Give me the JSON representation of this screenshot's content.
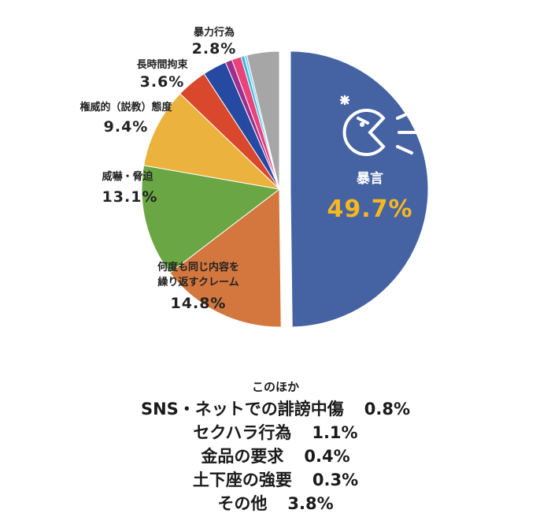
{
  "chart_data": {
    "type": "pie",
    "slices": [
      {
        "label": "暴言",
        "value": 49.7,
        "color": "#4562a3"
      },
      {
        "label": "何度も同じ内容を繰り返すクレーム",
        "label_lines": [
          "何度も同じ内容を",
          "繰り返すクレーム"
        ],
        "value": 14.8,
        "color": "#d4773e"
      },
      {
        "label": "威嚇・脅迫",
        "label_lines": [
          "威嚇・脅迫"
        ],
        "value": 13.1,
        "color": "#6aa744"
      },
      {
        "label": "権威的（説教）態度",
        "label_lines": [
          "権威的（説教）態度"
        ],
        "value": 9.4,
        "color": "#ebb33d"
      },
      {
        "label": "長時間拘束",
        "label_lines": [
          "長時間拘束"
        ],
        "value": 3.6,
        "color": "#d9472c"
      },
      {
        "label": "暴力行為",
        "label_lines": [
          "暴力行為"
        ],
        "value": 2.8,
        "color": "#2649a1"
      },
      {
        "label": "SNS・ネットでの誹謗中傷",
        "value": 0.8,
        "color": "#9e2f8d"
      },
      {
        "label": "セクハラ行為",
        "value": 1.1,
        "color": "#e8447a"
      },
      {
        "label": "金品の要求",
        "value": 0.4,
        "color": "#3ab9e0"
      },
      {
        "label": "土下座の強要",
        "value": 0.3,
        "color": "#8fd1ef"
      },
      {
        "label": "その他",
        "value": 3.8,
        "color": "#a6a6a6"
      }
    ],
    "value_labels": {
      "暴言": "49.7%",
      "何度も同じ内容を繰り返すクレーム": "14.8%",
      "威嚇・脅迫": "13.1%",
      "権威的（説教）態度": "9.4%",
      "長時間拘束": "3.6%",
      "暴力行為": "2.8%"
    },
    "exploded_slice": "暴言",
    "icon": "shouting-face-icon"
  },
  "notes": {
    "heading": "このほか",
    "items": [
      {
        "label": "SNS・ネットでの誹謗中傷",
        "value": "0.8%"
      },
      {
        "label": "セクハラ行為",
        "value": "1.1%"
      },
      {
        "label": "金品の要求",
        "value": "0.4%"
      },
      {
        "label": "土下座の強要",
        "value": "0.3%"
      },
      {
        "label": "その他",
        "value": "3.8%"
      }
    ]
  }
}
